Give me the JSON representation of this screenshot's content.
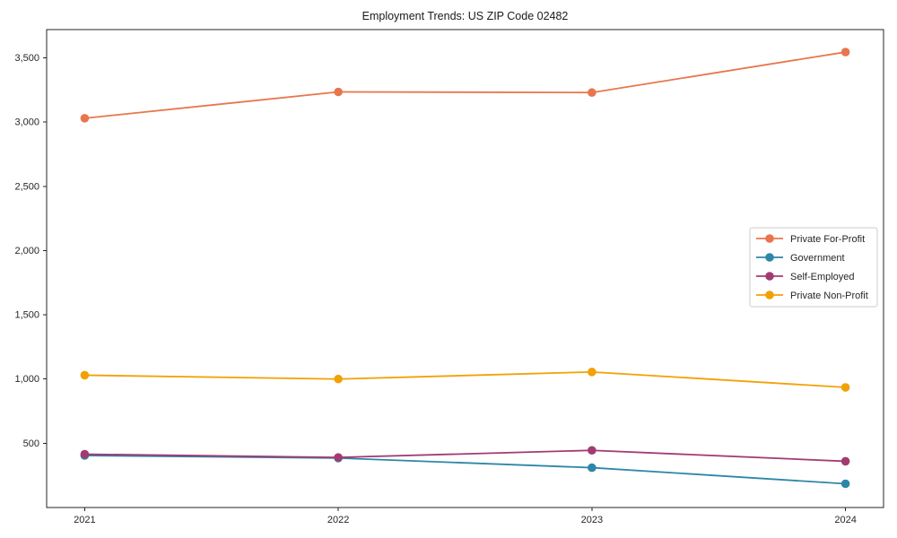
{
  "chart_data": {
    "type": "line",
    "title": "Employment Trends: US ZIP Code 02482",
    "categories": [
      "2021",
      "2022",
      "2023",
      "2024"
    ],
    "series": [
      {
        "name": "Private For-Profit",
        "color": "#e8764d",
        "values": [
          3030,
          3235,
          3230,
          3545
        ]
      },
      {
        "name": "Government",
        "color": "#2e87a8",
        "values": [
          405,
          385,
          310,
          185
        ]
      },
      {
        "name": "Self-Employed",
        "color": "#a23b72",
        "values": [
          415,
          390,
          445,
          360
        ]
      },
      {
        "name": "Private Non-Profit",
        "color": "#f2a104",
        "values": [
          1030,
          1000,
          1055,
          935
        ]
      }
    ],
    "xlabel": "",
    "ylabel": "",
    "ylim": [
      0,
      3720
    ],
    "yticks": [
      500,
      1000,
      1500,
      2000,
      2500,
      3000,
      3500
    ],
    "ytick_labels": [
      "500",
      "1,000",
      "1,500",
      "2,000",
      "2,500",
      "3,000",
      "3,500"
    ],
    "grid": false,
    "legend_position": "center right",
    "marker": "circle",
    "spine_color": "#262626",
    "legend_border_color": "#cccccc"
  }
}
